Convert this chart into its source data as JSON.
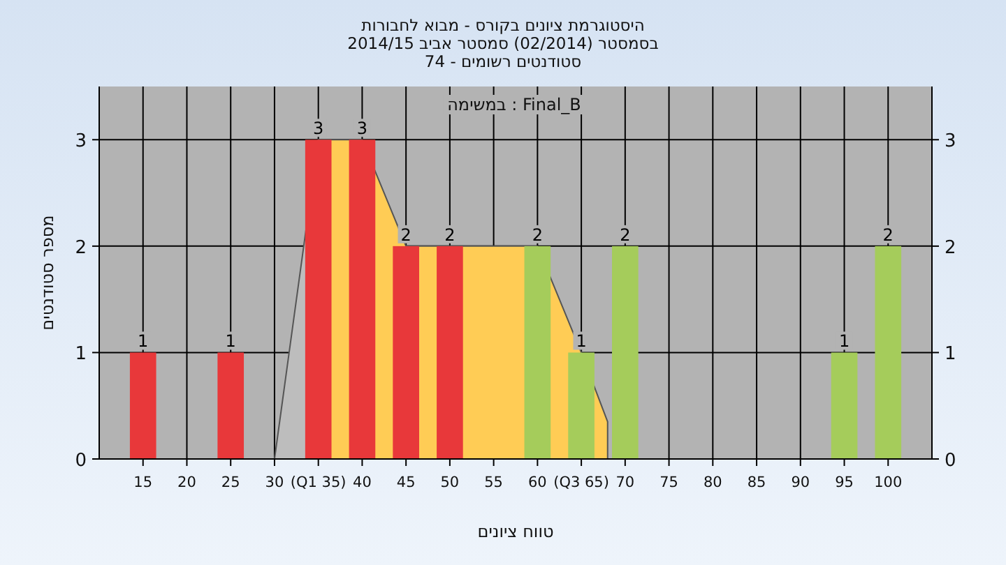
{
  "chart_data": {
    "type": "bar",
    "title": "היסטוגרמת ציונים בקורס - מבוא לחבורות\nבסמסטר  (02/2014)  סמסטר אביב 2014/15\nסטודנטים רשומים - 74",
    "xlabel": "טווח ציונים",
    "ylabel": "מספר סטודנטים",
    "annotations": [
      "במשימה : Final_B"
    ],
    "series": [
      {
        "type": "area",
        "color": "#bdbdbd",
        "x": [
          30,
          35
        ],
        "values": [
          0,
          3
        ]
      },
      {
        "type": "area",
        "color": "#ffcc55",
        "x": [
          35,
          40,
          45,
          50,
          55,
          60,
          65,
          68
        ],
        "values": [
          3,
          3,
          2,
          2,
          2,
          2,
          1,
          0.35
        ]
      },
      {
        "color": "#e8383a",
        "x": [
          15,
          25,
          35,
          40,
          45,
          50
        ],
        "values": [
          1,
          1,
          3,
          3,
          2,
          2
        ],
        "value_labels": [
          "1",
          "1",
          "3",
          "3",
          "2",
          "2"
        ]
      },
      {
        "color": "#a5cc5b",
        "x": [
          60,
          65,
          70,
          95,
          100
        ],
        "values": [
          2,
          1,
          2,
          1,
          2
        ],
        "value_labels": [
          "2",
          "1",
          "2",
          "1",
          "2"
        ]
      }
    ],
    "xlim": [
      10,
      105
    ],
    "xticks": [
      15,
      20,
      25,
      30,
      {
        "value": 35,
        "label": "(Q1 35)"
      },
      40,
      45,
      50,
      55,
      60,
      {
        "value": 65,
        "label": "(Q3 65)"
      },
      70,
      75,
      80,
      85,
      90,
      95,
      100
    ],
    "ylim": [
      0,
      3.5
    ],
    "yticks": [
      0,
      1,
      2,
      3
    ],
    "y2lim": [
      0,
      3.5
    ],
    "y2ticks": [
      0,
      1,
      2,
      3
    ],
    "grid": true
  }
}
